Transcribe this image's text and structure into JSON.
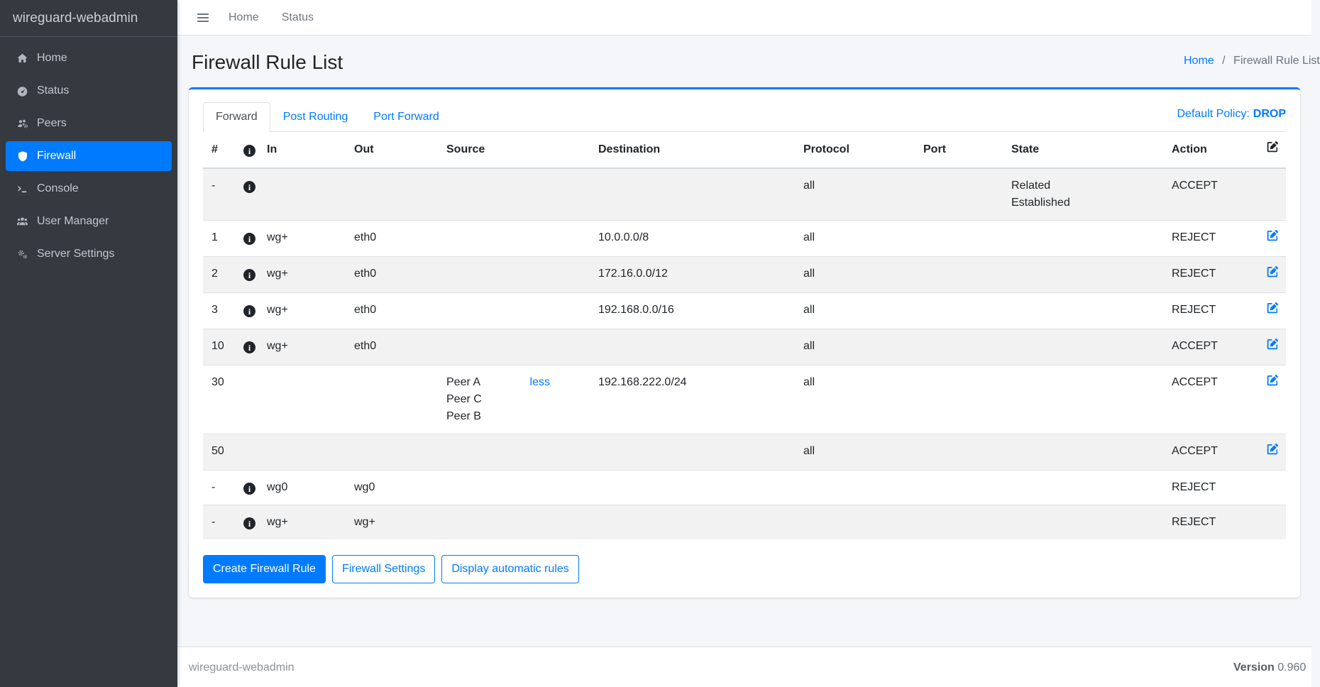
{
  "colors": {
    "accent": "#007bff",
    "sidebar_bg": "#343a40",
    "content_bg": "#f4f6f9"
  },
  "sidebar": {
    "brand": "wireguard-webadmin",
    "items": [
      {
        "label": "Home",
        "icon": "home-icon",
        "active": false
      },
      {
        "label": "Status",
        "icon": "gauge-icon",
        "active": false
      },
      {
        "label": "Peers",
        "icon": "users-gear-icon",
        "active": false
      },
      {
        "label": "Firewall",
        "icon": "shield-icon",
        "active": true
      },
      {
        "label": "Console",
        "icon": "terminal-icon",
        "active": false
      },
      {
        "label": "User Manager",
        "icon": "users-icon",
        "active": false
      },
      {
        "label": "Server Settings",
        "icon": "gears-icon",
        "active": false
      }
    ]
  },
  "navbar": {
    "links": [
      "Home",
      "Status"
    ]
  },
  "page": {
    "title": "Firewall Rule List",
    "breadcrumb": {
      "home": "Home",
      "separator": "/",
      "current": "Firewall Rule List"
    }
  },
  "card": {
    "tabs": [
      {
        "label": "Forward",
        "active": true
      },
      {
        "label": "Post Routing",
        "active": false
      },
      {
        "label": "Port Forward",
        "active": false
      }
    ],
    "default_policy_label": "Default Policy:",
    "default_policy_value": "DROP",
    "table": {
      "columns": {
        "num": "#",
        "in": "In",
        "out": "Out",
        "source": "Source",
        "destination": "Destination",
        "protocol": "Protocol",
        "port": "Port",
        "state": "State",
        "action": "Action"
      },
      "rows": [
        {
          "num": "-",
          "info": true,
          "in": "",
          "out": "",
          "peers": [],
          "toggle": "",
          "destination": "",
          "protocol": "all",
          "port": "",
          "state": [
            "Related",
            "Established"
          ],
          "action": "ACCEPT",
          "edit": false
        },
        {
          "num": "1",
          "info": true,
          "in": "wg+",
          "out": "eth0",
          "peers": [],
          "toggle": "",
          "destination": "10.0.0.0/8",
          "protocol": "all",
          "port": "",
          "state": [],
          "action": "REJECT",
          "edit": true
        },
        {
          "num": "2",
          "info": true,
          "in": "wg+",
          "out": "eth0",
          "peers": [],
          "toggle": "",
          "destination": "172.16.0.0/12",
          "protocol": "all",
          "port": "",
          "state": [],
          "action": "REJECT",
          "edit": true
        },
        {
          "num": "3",
          "info": true,
          "in": "wg+",
          "out": "eth0",
          "peers": [],
          "toggle": "",
          "destination": "192.168.0.0/16",
          "protocol": "all",
          "port": "",
          "state": [],
          "action": "REJECT",
          "edit": true
        },
        {
          "num": "10",
          "info": true,
          "in": "wg+",
          "out": "eth0",
          "peers": [],
          "toggle": "",
          "destination": "",
          "protocol": "all",
          "port": "",
          "state": [],
          "action": "ACCEPT",
          "edit": true
        },
        {
          "num": "30",
          "info": false,
          "in": "",
          "out": "",
          "peers": [
            "Peer A",
            "Peer C",
            "Peer B"
          ],
          "toggle": "less",
          "destination": "192.168.222.0/24",
          "protocol": "all",
          "port": "",
          "state": [],
          "action": "ACCEPT",
          "edit": true
        },
        {
          "num": "50",
          "info": false,
          "in": "",
          "out": "",
          "peers": [],
          "toggle": "",
          "destination": "",
          "protocol": "all",
          "port": "",
          "state": [],
          "action": "ACCEPT",
          "edit": true
        },
        {
          "num": "-",
          "info": true,
          "in": "wg0",
          "out": "wg0",
          "peers": [],
          "toggle": "",
          "destination": "",
          "protocol": "",
          "port": "",
          "state": [],
          "action": "REJECT",
          "edit": false
        },
        {
          "num": "-",
          "info": true,
          "in": "wg+",
          "out": "wg+",
          "peers": [],
          "toggle": "",
          "destination": "",
          "protocol": "",
          "port": "",
          "state": [],
          "action": "REJECT",
          "edit": false
        }
      ]
    },
    "buttons": [
      {
        "label": "Create Firewall Rule",
        "style": "solid"
      },
      {
        "label": "Firewall Settings",
        "style": "outline"
      },
      {
        "label": "Display automatic rules",
        "style": "outline"
      }
    ]
  },
  "icons": {
    "info_glyph": "i"
  },
  "footer": {
    "left": "wireguard-webadmin",
    "version_label": "Version",
    "version_value": "0.960"
  }
}
